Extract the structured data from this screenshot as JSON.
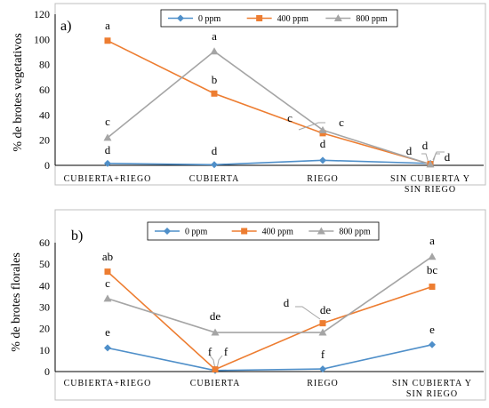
{
  "chart_data": [
    {
      "type": "line",
      "panel_label": "a)",
      "title": "",
      "xlabel": "",
      "ylabel": "% de brotes vegetativos",
      "ylim": [
        0,
        120
      ],
      "yticks": [
        "0",
        "20",
        "40",
        "60",
        "80",
        "100",
        "120"
      ],
      "categories": [
        [
          "CUBIERTA+RIEGO"
        ],
        [
          "CUBIERTA"
        ],
        [
          "RIEGO"
        ],
        [
          "SIN CUBIERTA Y",
          "SIN RIEGO"
        ]
      ],
      "legend_position": "top-center",
      "series": [
        {
          "name": "0 ppm",
          "color": "#4f8fc9",
          "marker": "diamond",
          "values": [
            1.5,
            0.5,
            4,
            1.5
          ],
          "labels": [
            "d",
            "d",
            "d",
            "d"
          ]
        },
        {
          "name": "400 ppm",
          "color": "#ed7d31",
          "marker": "square",
          "values": [
            99,
            57,
            25.5,
            1
          ],
          "labels": [
            "a",
            "b",
            "",
            "d"
          ]
        },
        {
          "name": "800 ppm",
          "color": "#a5a5a5",
          "marker": "triangle",
          "values": [
            22,
            90.5,
            28,
            0.8
          ],
          "labels": [
            "c",
            "a",
            "c",
            "d"
          ]
        }
      ],
      "extra_labels": [
        "c"
      ]
    },
    {
      "type": "line",
      "panel_label": "b)",
      "title": "",
      "xlabel": "",
      "ylabel": "% de brotes florales",
      "ylim": [
        0,
        60
      ],
      "yticks": [
        "0",
        "10",
        "20",
        "30",
        "40",
        "50",
        "60"
      ],
      "categories": [
        [
          "CUBIERTA+RIEGO"
        ],
        [
          "CUBIERTA"
        ],
        [
          "RIEGO"
        ],
        [
          "SIN CUBIERTA Y",
          "SIN RIEGO"
        ]
      ],
      "legend_position": "top-center",
      "series": [
        {
          "name": "0 ppm",
          "color": "#4f8fc9",
          "marker": "diamond",
          "values": [
            11,
            0.5,
            1.2,
            12.5
          ],
          "labels": [
            "e",
            "",
            "f",
            "e"
          ]
        },
        {
          "name": "400 ppm",
          "color": "#ed7d31",
          "marker": "square",
          "values": [
            46.5,
            1,
            22.5,
            39.5
          ],
          "labels": [
            "ab",
            "",
            "",
            "bc"
          ]
        },
        {
          "name": "800 ppm",
          "color": "#a5a5a5",
          "marker": "triangle",
          "values": [
            34,
            18.2,
            18.2,
            53.5
          ],
          "labels": [
            "c",
            "de",
            "de",
            "a"
          ]
        }
      ],
      "extra_labels": [
        "f",
        "f",
        "d"
      ]
    }
  ]
}
